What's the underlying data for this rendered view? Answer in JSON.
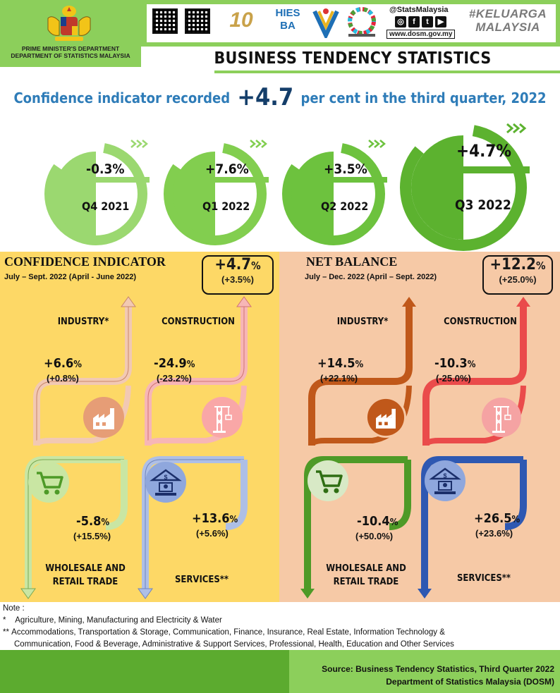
{
  "header": {
    "ministry_line1": "PRIME MINISTER'S DEPARTMENT",
    "ministry_line2": "DEPARTMENT OF STATISTICS MALAYSIA",
    "social_handle": "@StatsMalaysia",
    "website": "www.dosm.gov.my",
    "hashtag": "#KELUARGA MALAYSIA",
    "logo_10": "10",
    "logo_hies": "HIES BA"
  },
  "title": "BUSINESS TENDENCY STATISTICS",
  "headline": {
    "prefix": "Confidence indicator recorded",
    "value": "+4.7",
    "suffix": "per cent in the third quarter, 2022"
  },
  "quarters": [
    {
      "label": "Q4 2021",
      "value": "-0.3%",
      "color": "#9bd870"
    },
    {
      "label": "Q1 2022",
      "value": "+7.6%",
      "color": "#82ce4f"
    },
    {
      "label": "Q2 2022",
      "value": "+3.5%",
      "color": "#6dc23e"
    },
    {
      "label": "Q3 2022",
      "value": "+4.7%",
      "color": "#5cb22f"
    }
  ],
  "confidence_indicator": {
    "title": "CONFIDENCE INDICATOR",
    "period": "July – Sept. 2022 (April - June 2022)",
    "overall_value": "+4.7",
    "overall_unit": "%",
    "overall_prev": "(+3.5%)",
    "sectors": {
      "industry": {
        "name": "INDUSTRY*",
        "value": "+6.6",
        "unit": "%",
        "prev": "(+0.8%)"
      },
      "construction": {
        "name": "CONSTRUCTION",
        "value": "-24.9",
        "unit": "%",
        "prev": "(-23.2%)"
      },
      "wholesale": {
        "name_line1": "WHOLESALE AND",
        "name_line2": "RETAIL TRADE",
        "value": "-5.8",
        "unit": "%",
        "prev": "(+15.5%)"
      },
      "services": {
        "name": "SERVICES**",
        "value": "+13.6",
        "unit": "%",
        "prev": "(+5.6%)"
      }
    },
    "colors": {
      "industry": "#f2c9b3",
      "construction": "#f7b6b6",
      "wholesale": "#c9e6a3",
      "services": "#aebfe6"
    }
  },
  "net_balance": {
    "title": "NET BALANCE",
    "period": "July – Dec. 2022 (April – Sept. 2022)",
    "overall_value": "+12.2",
    "overall_unit": "%",
    "overall_prev": "(+25.0%)",
    "sectors": {
      "industry": {
        "name": "INDUSTRY*",
        "value": "+14.5",
        "unit": "%",
        "prev": "(+22.1%)"
      },
      "construction": {
        "name": "CONSTRUCTION",
        "value": "-10.3",
        "unit": "%",
        "prev": "(-25.0%)"
      },
      "wholesale": {
        "name_line1": "WHOLESALE AND",
        "name_line2": "RETAIL TRADE",
        "value": "-10.4",
        "unit": "%",
        "prev": "(+50.0%)"
      },
      "services": {
        "name": "SERVICES**",
        "value": "+26.5",
        "unit": "%",
        "prev": "(+23.6%)"
      }
    },
    "colors": {
      "industry": "#c0581a",
      "construction": "#ea4b4b",
      "wholesale": "#4e9a27",
      "services": "#2e58b2"
    }
  },
  "notes": {
    "heading": "Note :",
    "star1_mark": "*",
    "star1_text": "Agriculture, Mining, Manufacturing and  Electricity & Water",
    "star2_mark": "**",
    "star2_line1": "Accommodations, Transportation & Storage, Communication, Finance, Insurance, Real Estate, Information Technology &",
    "star2_line2": "Communication, Food & Beverage, Administrative & Support Services, Professional, Health, Education and Other Services"
  },
  "footer": {
    "source_line1": "Source: Business Tendency Statistics, Third Quarter 2022",
    "source_line2": "Department of Statistics Malaysia (DOSM)"
  }
}
